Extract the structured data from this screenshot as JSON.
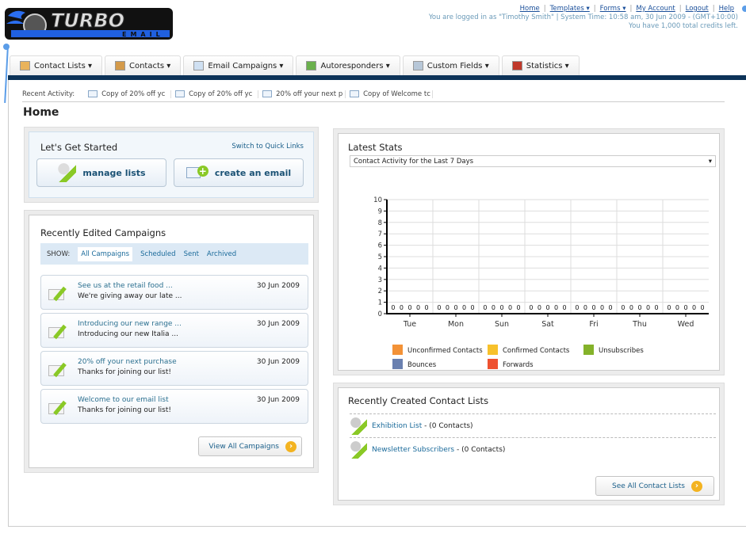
{
  "logo": {
    "text": "TURBO",
    "subtext": "EMAIL"
  },
  "top": {
    "links": [
      {
        "label": "Home"
      },
      {
        "label": "Templates ▾"
      },
      {
        "label": "Forms ▾"
      },
      {
        "label": "My Account"
      },
      {
        "label": "Logout"
      },
      {
        "label": "Help"
      }
    ],
    "status": "You are logged in as \"Timothy Smith\" | System Time: 10:58 am, 30 Jun 2009 - (GMT+10:00)",
    "credits": "You have 1,000 total credits left."
  },
  "tabs": [
    {
      "label": "Contact Lists ▾",
      "icon": "contact-lists-icon"
    },
    {
      "label": "Contacts ▾",
      "icon": "contacts-icon"
    },
    {
      "label": "Email Campaigns ▾",
      "icon": "envelope-icon"
    },
    {
      "label": "Autoresponders ▾",
      "icon": "autoresponder-icon"
    },
    {
      "label": "Custom Fields ▾",
      "icon": "document-icon"
    },
    {
      "label": "Statistics ▾",
      "icon": "bar-chart-icon"
    }
  ],
  "recent": {
    "label": "Recent Activity:",
    "items": [
      "Copy of 20% off yc",
      "Copy of 20% off yc",
      "20% off your next p",
      "Copy of Welcome tc"
    ]
  },
  "page_title": "Home",
  "get_started": {
    "title": "Let's Get Started",
    "switch": "Switch to Quick Links",
    "manage": "manage lists",
    "create": "create an email"
  },
  "campaigns": {
    "title": "Recently Edited Campaigns",
    "show_label": "SHOW:",
    "filters": [
      "All Campaigns",
      "Scheduled",
      "Sent",
      "Archived"
    ],
    "items": [
      {
        "title": "See us at the retail food ...",
        "subject": "We're giving away our late ...",
        "date": "30 Jun 2009"
      },
      {
        "title": "Introducing our new range ...",
        "subject": "Introducing our new Italia ...",
        "date": "30 Jun 2009"
      },
      {
        "title": "20% off your next purchase",
        "subject": "Thanks for joining our list!",
        "date": "30 Jun 2009"
      },
      {
        "title": "Welcome to our email list",
        "subject": "Thanks for joining our list!",
        "date": "30 Jun 2009"
      }
    ],
    "view_all": "View All Campaigns"
  },
  "stats": {
    "title": "Latest Stats",
    "select": "Contact Activity for the Last 7 Days"
  },
  "chart_data": {
    "type": "bar",
    "categories": [
      "Tue",
      "Mon",
      "Sun",
      "Sat",
      "Fri",
      "Thu",
      "Wed"
    ],
    "ylim": [
      0,
      10
    ],
    "yticks": [
      0,
      1,
      2,
      3,
      4,
      5,
      6,
      7,
      8,
      9,
      10
    ],
    "grid": true,
    "legend": "bottom",
    "series": [
      {
        "name": "Unconfirmed Contacts",
        "color": "#f39237",
        "values": [
          0,
          0,
          0,
          0,
          0,
          0,
          0
        ]
      },
      {
        "name": "Confirmed Contacts",
        "color": "#f7c12b",
        "values": [
          0,
          0,
          0,
          0,
          0,
          0,
          0
        ]
      },
      {
        "name": "Unsubscribes",
        "color": "#84b22a",
        "values": [
          0,
          0,
          0,
          0,
          0,
          0,
          0
        ]
      },
      {
        "name": "Bounces",
        "color": "#6a80b0",
        "values": [
          0,
          0,
          0,
          0,
          0,
          0,
          0
        ]
      },
      {
        "name": "Forwards",
        "color": "#ee5130",
        "values": [
          0,
          0,
          0,
          0,
          0,
          0,
          0
        ]
      }
    ]
  },
  "lists": {
    "title": "Recently Created Contact Lists",
    "items": [
      {
        "name": "Exhibition List",
        "count": " - (0 Contacts)"
      },
      {
        "name": "Newsletter Subscribers",
        "count": " - (0 Contacts)"
      }
    ],
    "see_all": "See All Contact Lists"
  }
}
